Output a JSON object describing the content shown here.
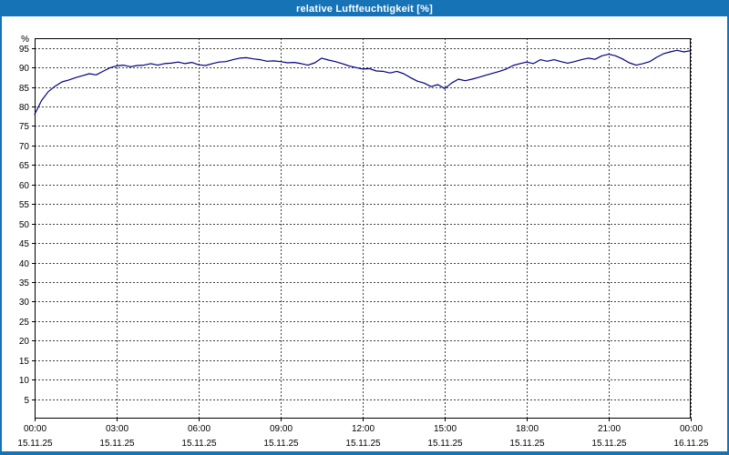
{
  "window": {
    "titlebar_bg": "#1673b6",
    "border_color": "#1673b6"
  },
  "chart_data": {
    "type": "line",
    "title": "relative Luftfeuchtigkeit [%]",
    "ylabel": "%",
    "xlabel": "",
    "ylim": [
      0,
      97.5
    ],
    "yticks": [
      95,
      90,
      85,
      80,
      75,
      70,
      65,
      60,
      55,
      50,
      45,
      40,
      35,
      30,
      25,
      20,
      15,
      10,
      5
    ],
    "grid": "dashed",
    "grid_color": "#404040",
    "axis_color": "#000000",
    "line_color": "#000080",
    "legend": "none",
    "x_start": 0,
    "x_total_hours": 24,
    "x_step_hours": 0.25,
    "xticks": [
      {
        "time": "00:00",
        "date": "15.11.25"
      },
      {
        "time": "03:00",
        "date": "15.11.25"
      },
      {
        "time": "06:00",
        "date": "15.11.25"
      },
      {
        "time": "09:00",
        "date": "15.11.25"
      },
      {
        "time": "12:00",
        "date": "15.11.25"
      },
      {
        "time": "15:00",
        "date": "15.11.25"
      },
      {
        "time": "18:00",
        "date": "15.11.25"
      },
      {
        "time": "21:00",
        "date": "15.11.25"
      },
      {
        "time": "00:00",
        "date": "16.11.25"
      }
    ],
    "values": [
      78.0,
      81.5,
      83.8,
      85.2,
      86.3,
      86.8,
      87.4,
      87.9,
      88.4,
      88.1,
      89.0,
      89.9,
      90.4,
      90.6,
      90.2,
      90.5,
      90.6,
      91.0,
      90.6,
      91.0,
      91.1,
      91.4,
      91.0,
      91.3,
      90.7,
      90.5,
      91.0,
      91.4,
      91.5,
      92.0,
      92.4,
      92.5,
      92.2,
      92.0,
      91.6,
      91.7,
      91.5,
      91.2,
      91.3,
      91.0,
      90.6,
      91.2,
      92.4,
      91.9,
      91.5,
      91.0,
      90.4,
      90.0,
      89.6,
      89.7,
      89.1,
      89.0,
      88.6,
      89.0,
      88.4,
      87.4,
      86.5,
      86.0,
      85.1,
      85.6,
      84.6,
      86.0,
      87.0,
      86.6,
      87.0,
      87.5,
      88.0,
      88.5,
      89.0,
      89.6,
      90.5,
      91.0,
      91.4,
      91.0,
      92.0,
      91.6,
      92.0,
      91.5,
      91.1,
      91.5,
      92.0,
      92.4,
      92.1,
      93.0,
      93.4,
      93.0,
      92.2,
      91.2,
      90.6,
      91.0,
      91.5,
      92.6,
      93.5,
      94.0,
      94.4,
      94.0,
      94.3
    ]
  }
}
